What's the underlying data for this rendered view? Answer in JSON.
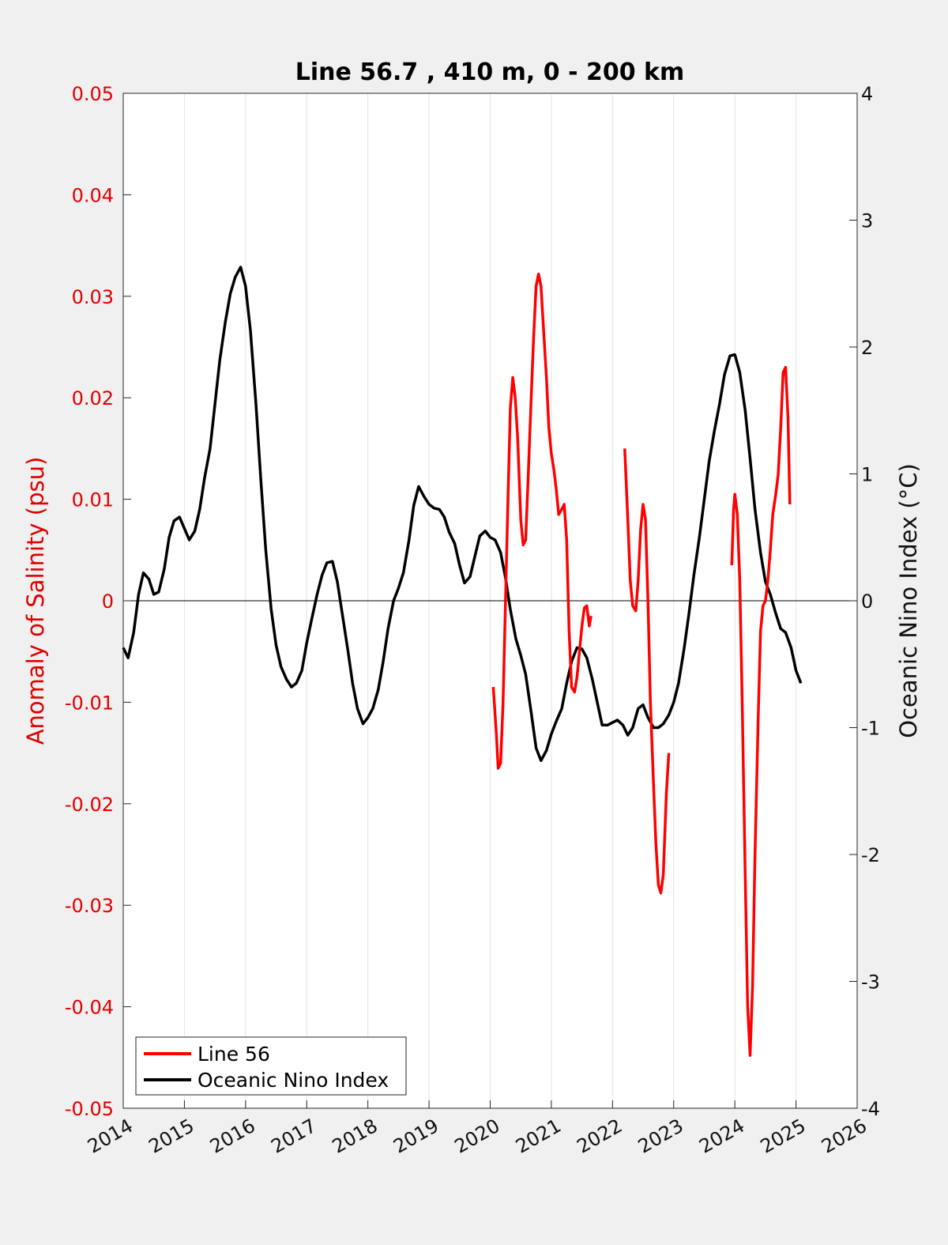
{
  "chart_data": {
    "type": "line",
    "title": "Line 56.7 , 410 m, 0 - 200 km",
    "ylabel": "Anomaly of Salinity (psu)",
    "y2label": "Oceanic Nino Index (°C)",
    "xlim": [
      2014,
      2026
    ],
    "ylim": [
      -0.05,
      0.05
    ],
    "y2lim": [
      -4,
      4
    ],
    "x_ticks": [
      "2014",
      "2015",
      "2016",
      "2017",
      "2018",
      "2019",
      "2020",
      "2021",
      "2022",
      "2023",
      "2024",
      "2025",
      "2026"
    ],
    "y_ticks": [
      "-0.05",
      "-0.04",
      "-0.03",
      "-0.02",
      "-0.01",
      "0",
      "0.01",
      "0.02",
      "0.03",
      "0.04",
      "0.05"
    ],
    "y2_ticks": [
      "-4",
      "-3",
      "-2",
      "-1",
      "0",
      "1",
      "2",
      "3",
      "4"
    ],
    "grid": "vertical",
    "zero_line": true,
    "legend_position": "bottom-left",
    "colors": {
      "line56": "#ff0000",
      "oni": "#000000",
      "left_axis": "#e00000"
    },
    "series": [
      {
        "name": "Line 56",
        "axis": "left",
        "segments": [
          [
            [
              2020.05,
              -0.0085
            ],
            [
              2020.1,
              -0.013
            ],
            [
              2020.13,
              -0.0165
            ],
            [
              2020.17,
              -0.016
            ],
            [
              2020.21,
              -0.01
            ],
            [
              2020.25,
              0.0
            ],
            [
              2020.29,
              0.01
            ],
            [
              2020.33,
              0.019
            ],
            [
              2020.37,
              0.022
            ],
            [
              2020.41,
              0.02
            ],
            [
              2020.45,
              0.016
            ],
            [
              2020.5,
              0.008
            ],
            [
              2020.54,
              0.0055
            ],
            [
              2020.58,
              0.006
            ],
            [
              2020.62,
              0.012
            ],
            [
              2020.67,
              0.02
            ],
            [
              2020.71,
              0.026
            ],
            [
              2020.75,
              0.031
            ],
            [
              2020.79,
              0.0322
            ],
            [
              2020.83,
              0.031
            ],
            [
              2020.88,
              0.026
            ],
            [
              2020.92,
              0.022
            ],
            [
              2020.96,
              0.017
            ],
            [
              2021.0,
              0.0145
            ],
            [
              2021.04,
              0.013
            ],
            [
              2021.08,
              0.011
            ],
            [
              2021.12,
              0.0085
            ],
            [
              2021.17,
              0.009
            ],
            [
              2021.21,
              0.0095
            ],
            [
              2021.25,
              0.006
            ],
            [
              2021.29,
              -0.003
            ],
            [
              2021.33,
              -0.0085
            ],
            [
              2021.38,
              -0.009
            ],
            [
              2021.42,
              -0.0075
            ],
            [
              2021.46,
              -0.005
            ],
            [
              2021.5,
              -0.0025
            ],
            [
              2021.54,
              -0.0007
            ],
            [
              2021.58,
              -0.0005
            ],
            [
              2021.62,
              -0.0025
            ],
            [
              2021.65,
              -0.0015
            ]
          ],
          [
            [
              2022.2,
              0.015
            ],
            [
              2022.25,
              0.008
            ],
            [
              2022.29,
              0.002
            ],
            [
              2022.33,
              -0.0005
            ],
            [
              2022.38,
              -0.001
            ],
            [
              2022.42,
              0.002
            ],
            [
              2022.46,
              0.007
            ],
            [
              2022.5,
              0.0095
            ],
            [
              2022.54,
              0.008
            ],
            [
              2022.58,
              0.0
            ],
            [
              2022.62,
              -0.01
            ],
            [
              2022.67,
              -0.018
            ],
            [
              2022.71,
              -0.024
            ],
            [
              2022.75,
              -0.028
            ],
            [
              2022.79,
              -0.0288
            ],
            [
              2022.83,
              -0.027
            ],
            [
              2022.88,
              -0.019
            ],
            [
              2022.92,
              -0.015
            ]
          ],
          [
            [
              2023.95,
              0.0035
            ],
            [
              2023.98,
              0.009
            ],
            [
              2024.0,
              0.0105
            ],
            [
              2024.04,
              0.0085
            ],
            [
              2024.08,
              0.002
            ],
            [
              2024.12,
              -0.01
            ],
            [
              2024.17,
              -0.027
            ],
            [
              2024.21,
              -0.04
            ],
            [
              2024.25,
              -0.0448
            ],
            [
              2024.29,
              -0.038
            ],
            [
              2024.33,
              -0.025
            ],
            [
              2024.38,
              -0.012
            ],
            [
              2024.42,
              -0.003
            ],
            [
              2024.46,
              -0.0005
            ],
            [
              2024.5,
              0.0
            ],
            [
              2024.54,
              0.002
            ],
            [
              2024.58,
              0.005
            ],
            [
              2024.62,
              0.0085
            ],
            [
              2024.67,
              0.0105
            ],
            [
              2024.71,
              0.0125
            ],
            [
              2024.75,
              0.017
            ],
            [
              2024.79,
              0.0225
            ],
            [
              2024.83,
              0.023
            ],
            [
              2024.87,
              0.018
            ],
            [
              2024.9,
              0.0095
            ]
          ]
        ]
      },
      {
        "name": "Oceanic Nino Index",
        "axis": "right",
        "points": [
          [
            2014.0,
            -0.37
          ],
          [
            2014.08,
            -0.45
          ],
          [
            2014.17,
            -0.25
          ],
          [
            2014.25,
            0.05
          ],
          [
            2014.33,
            0.22
          ],
          [
            2014.42,
            0.17
          ],
          [
            2014.5,
            0.05
          ],
          [
            2014.58,
            0.07
          ],
          [
            2014.67,
            0.25
          ],
          [
            2014.75,
            0.5
          ],
          [
            2014.83,
            0.63
          ],
          [
            2014.92,
            0.66
          ],
          [
            2015.0,
            0.57
          ],
          [
            2015.08,
            0.48
          ],
          [
            2015.17,
            0.55
          ],
          [
            2015.25,
            0.72
          ],
          [
            2015.33,
            0.97
          ],
          [
            2015.42,
            1.2
          ],
          [
            2015.5,
            1.55
          ],
          [
            2015.58,
            1.9
          ],
          [
            2015.67,
            2.2
          ],
          [
            2015.75,
            2.42
          ],
          [
            2015.83,
            2.55
          ],
          [
            2015.92,
            2.63
          ],
          [
            2016.0,
            2.48
          ],
          [
            2016.08,
            2.13
          ],
          [
            2016.17,
            1.55
          ],
          [
            2016.25,
            0.95
          ],
          [
            2016.33,
            0.4
          ],
          [
            2016.42,
            -0.07
          ],
          [
            2016.5,
            -0.35
          ],
          [
            2016.58,
            -0.52
          ],
          [
            2016.67,
            -0.62
          ],
          [
            2016.75,
            -0.68
          ],
          [
            2016.83,
            -0.65
          ],
          [
            2016.92,
            -0.55
          ],
          [
            2017.0,
            -0.33
          ],
          [
            2017.08,
            -0.15
          ],
          [
            2017.17,
            0.05
          ],
          [
            2017.25,
            0.2
          ],
          [
            2017.33,
            0.3
          ],
          [
            2017.42,
            0.31
          ],
          [
            2017.5,
            0.15
          ],
          [
            2017.58,
            -0.1
          ],
          [
            2017.67,
            -0.38
          ],
          [
            2017.75,
            -0.65
          ],
          [
            2017.83,
            -0.85
          ],
          [
            2017.92,
            -0.97
          ],
          [
            2018.0,
            -0.92
          ],
          [
            2018.08,
            -0.85
          ],
          [
            2018.17,
            -0.7
          ],
          [
            2018.25,
            -0.48
          ],
          [
            2018.33,
            -0.22
          ],
          [
            2018.42,
            0.0
          ],
          [
            2018.5,
            0.1
          ],
          [
            2018.58,
            0.22
          ],
          [
            2018.67,
            0.47
          ],
          [
            2018.75,
            0.75
          ],
          [
            2018.83,
            0.9
          ],
          [
            2018.92,
            0.82
          ],
          [
            2019.0,
            0.76
          ],
          [
            2019.08,
            0.73
          ],
          [
            2019.17,
            0.72
          ],
          [
            2019.25,
            0.66
          ],
          [
            2019.33,
            0.54
          ],
          [
            2019.42,
            0.45
          ],
          [
            2019.5,
            0.28
          ],
          [
            2019.58,
            0.14
          ],
          [
            2019.67,
            0.19
          ],
          [
            2019.75,
            0.35
          ],
          [
            2019.83,
            0.51
          ],
          [
            2019.92,
            0.55
          ],
          [
            2020.0,
            0.5
          ],
          [
            2020.08,
            0.48
          ],
          [
            2020.17,
            0.38
          ],
          [
            2020.25,
            0.18
          ],
          [
            2020.33,
            -0.07
          ],
          [
            2020.42,
            -0.3
          ],
          [
            2020.5,
            -0.43
          ],
          [
            2020.58,
            -0.58
          ],
          [
            2020.67,
            -0.88
          ],
          [
            2020.75,
            -1.16
          ],
          [
            2020.83,
            -1.26
          ],
          [
            2020.92,
            -1.18
          ],
          [
            2021.0,
            -1.05
          ],
          [
            2021.08,
            -0.95
          ],
          [
            2021.17,
            -0.85
          ],
          [
            2021.25,
            -0.65
          ],
          [
            2021.33,
            -0.48
          ],
          [
            2021.42,
            -0.37
          ],
          [
            2021.5,
            -0.38
          ],
          [
            2021.58,
            -0.45
          ],
          [
            2021.67,
            -0.62
          ],
          [
            2021.75,
            -0.8
          ],
          [
            2021.83,
            -0.98
          ],
          [
            2021.92,
            -0.98
          ],
          [
            2022.0,
            -0.96
          ],
          [
            2022.08,
            -0.94
          ],
          [
            2022.17,
            -0.98
          ],
          [
            2022.25,
            -1.06
          ],
          [
            2022.33,
            -1.0
          ],
          [
            2022.42,
            -0.85
          ],
          [
            2022.5,
            -0.82
          ],
          [
            2022.58,
            -0.92
          ],
          [
            2022.67,
            -1.0
          ],
          [
            2022.75,
            -1.0
          ],
          [
            2022.83,
            -0.97
          ],
          [
            2022.92,
            -0.9
          ],
          [
            2023.0,
            -0.8
          ],
          [
            2023.08,
            -0.65
          ],
          [
            2023.17,
            -0.38
          ],
          [
            2023.25,
            -0.1
          ],
          [
            2023.33,
            0.2
          ],
          [
            2023.42,
            0.5
          ],
          [
            2023.5,
            0.8
          ],
          [
            2023.58,
            1.1
          ],
          [
            2023.67,
            1.35
          ],
          [
            2023.75,
            1.55
          ],
          [
            2023.83,
            1.78
          ],
          [
            2023.92,
            1.93
          ],
          [
            2024.0,
            1.94
          ],
          [
            2024.08,
            1.8
          ],
          [
            2024.17,
            1.5
          ],
          [
            2024.25,
            1.12
          ],
          [
            2024.33,
            0.72
          ],
          [
            2024.42,
            0.38
          ],
          [
            2024.5,
            0.15
          ],
          [
            2024.58,
            0.05
          ],
          [
            2024.67,
            -0.1
          ],
          [
            2024.75,
            -0.22
          ],
          [
            2024.83,
            -0.25
          ],
          [
            2024.92,
            -0.37
          ],
          [
            2025.0,
            -0.55
          ],
          [
            2025.08,
            -0.65
          ]
        ]
      }
    ]
  },
  "legend": {
    "items": [
      {
        "label": "Line 56",
        "color": "#ff0000"
      },
      {
        "label": "Oceanic Nino Index",
        "color": "#000000"
      }
    ]
  }
}
